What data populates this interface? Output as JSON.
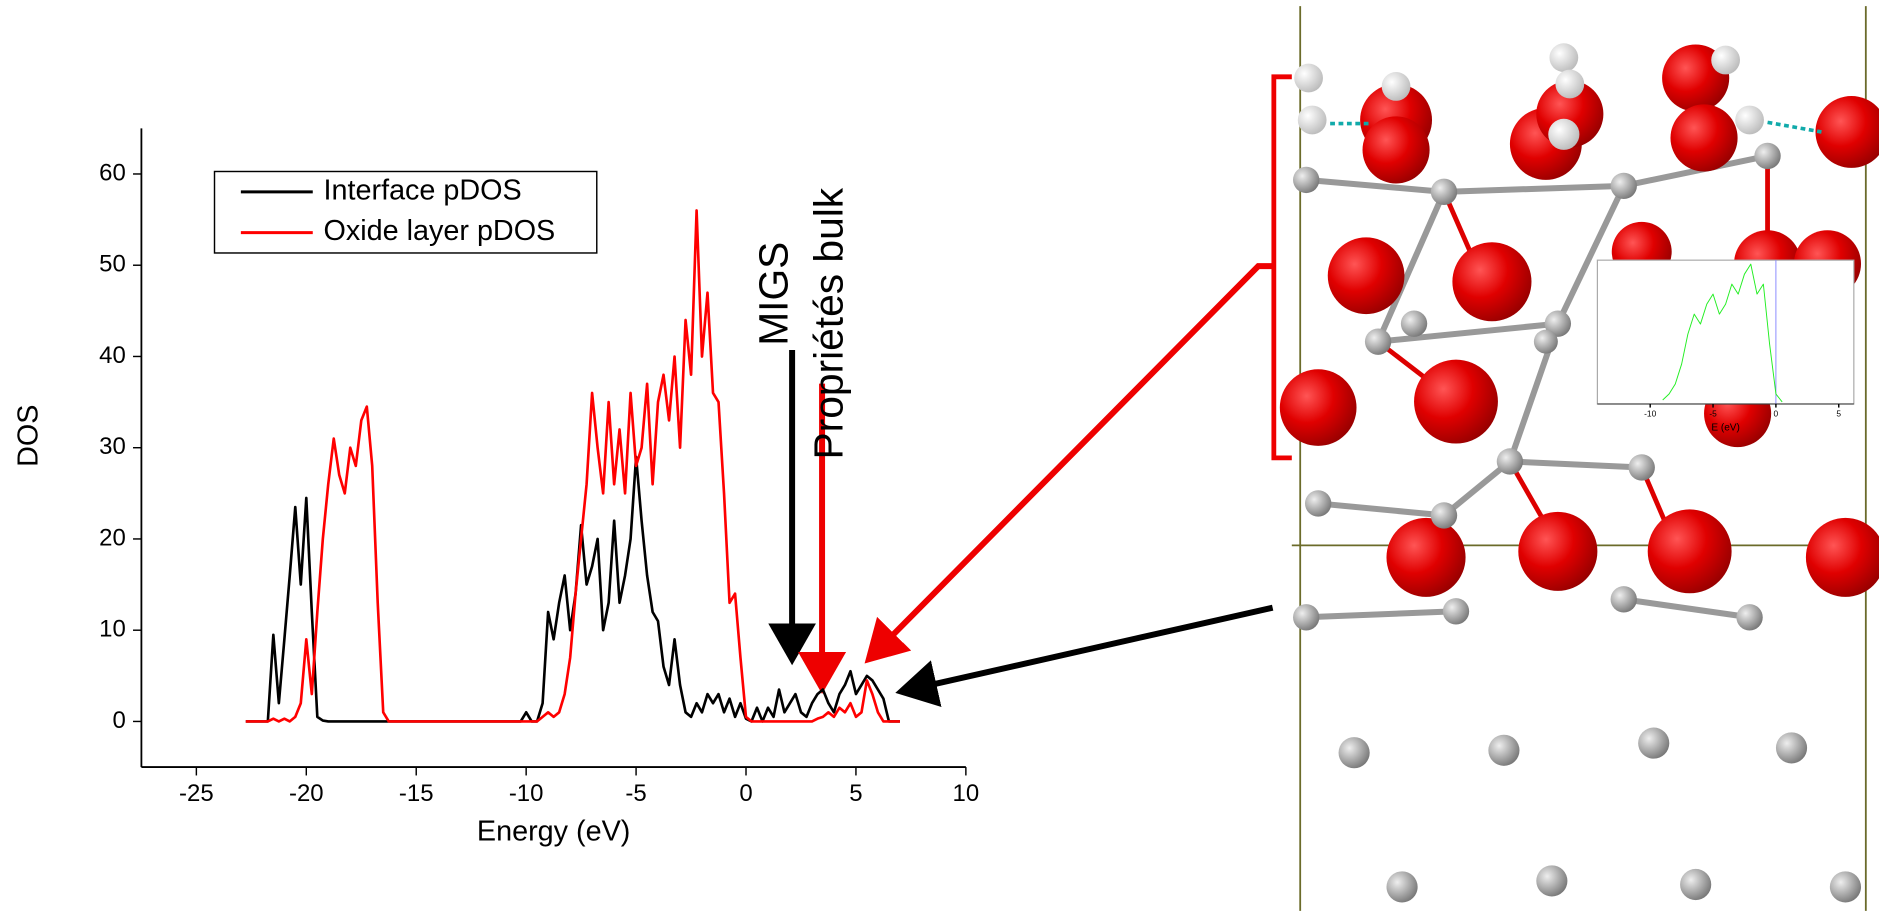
{
  "chart_data": [
    {
      "type": "line",
      "xlabel": "Energy (eV)",
      "ylabel": "DOS",
      "xlim": [
        -27.5,
        10
      ],
      "ylim": [
        -5,
        65
      ],
      "xticks": [
        -25,
        -20,
        -15,
        -10,
        -5,
        0,
        5,
        10
      ],
      "yticks": [
        0,
        10,
        20,
        30,
        40,
        50,
        60
      ],
      "legend": "upper left",
      "annotations": [
        "MIGS",
        "Propriétés bulk"
      ],
      "x": [
        -22.75,
        -21.75,
        -21.5,
        -21.25,
        -21,
        -20.75,
        -20.5,
        -20.25,
        -20,
        -19.75,
        -19.5,
        -19.25,
        -19,
        -18.75,
        -18.5,
        -18.25,
        -18,
        -17.75,
        -17.5,
        -17.25,
        -17,
        -16.75,
        -16.5,
        -16.25,
        -10.25,
        -10,
        -9.75,
        -9.5,
        -9.25,
        -9,
        -8.75,
        -8.5,
        -8.25,
        -8,
        -7.75,
        -7.5,
        -7.25,
        -7,
        -6.75,
        -6.5,
        -6.25,
        -6,
        -5.75,
        -5.5,
        -5.25,
        -5,
        -4.75,
        -4.5,
        -4.25,
        -4,
        -3.75,
        -3.5,
        -3.25,
        -3,
        -2.75,
        -2.5,
        -2.25,
        -2,
        -1.75,
        -1.5,
        -1.25,
        -1,
        -0.75,
        -0.5,
        -0.25,
        0,
        0.25,
        0.5,
        0.75,
        1,
        1.25,
        1.5,
        1.75,
        2,
        2.25,
        2.5,
        2.75,
        3,
        3.25,
        3.5,
        3.75,
        4,
        4.25,
        4.5,
        4.75,
        5,
        5.25,
        5.5,
        5.75,
        6,
        6.25,
        6.5,
        6.75,
        7
      ],
      "series": [
        {
          "name": "Interface pDOS",
          "color": "#000000",
          "values": [
            0,
            0,
            9.5,
            2,
            9,
            16,
            23.5,
            15,
            24.5,
            12,
            0.5,
            0.1,
            0,
            0,
            0,
            0,
            0,
            0,
            0,
            0,
            0,
            0,
            0,
            0,
            0,
            1,
            0,
            0,
            2,
            12,
            9,
            13,
            16,
            10,
            14,
            21.5,
            15,
            17,
            20,
            10,
            13,
            22,
            13,
            16,
            20,
            29,
            22,
            16,
            12,
            11,
            6,
            4,
            9,
            4,
            1,
            0.5,
            2,
            1,
            3,
            2,
            3,
            1,
            2.5,
            0.5,
            2,
            0.3,
            0,
            1.5,
            0,
            1.5,
            0.5,
            3.5,
            1,
            2,
            3,
            1,
            0.5,
            2,
            3,
            3.5,
            2,
            1,
            3,
            4,
            5.5,
            3,
            4,
            5,
            4.5,
            3.5,
            2.5,
            0,
            0,
            0
          ]
        },
        {
          "name": "Oxide layer pDOS",
          "color": "#ff0000",
          "values": [
            0,
            0,
            0.3,
            0,
            0.3,
            0,
            0.5,
            2,
            9,
            3,
            12,
            20,
            26,
            31,
            27,
            25,
            30,
            28,
            33,
            34.5,
            28,
            13,
            1,
            0,
            0,
            0,
            0,
            0,
            0.5,
            1,
            0.5,
            1,
            3,
            7,
            14,
            20,
            26,
            36,
            30,
            25,
            35,
            26,
            32,
            25,
            36,
            28,
            30,
            37,
            26,
            35,
            38,
            33,
            40,
            30,
            44,
            38,
            56,
            40,
            47,
            36,
            35,
            25,
            13,
            14,
            7,
            0.5,
            0,
            0,
            0,
            0,
            0,
            0,
            0,
            0,
            0,
            0,
            0,
            0,
            0.3,
            0.5,
            1,
            0.5,
            1.5,
            1,
            2,
            0.5,
            1,
            4.5,
            3,
            1,
            0,
            0,
            0,
            0
          ]
        }
      ]
    },
    {
      "type": "line",
      "xlabel": "E (eV)",
      "xlim": [
        -14.2,
        6.2
      ],
      "ylim": [
        0,
        72
      ],
      "xticks": [
        -10,
        -5,
        0,
        5
      ],
      "x": [
        -9,
        -8.5,
        -8,
        -7.5,
        -7,
        -6.5,
        -6,
        -5.5,
        -5,
        -4.5,
        -4,
        -3.5,
        -3,
        -2.5,
        -2,
        -1.5,
        -1,
        -0.5,
        0,
        0.5
      ],
      "series": [
        {
          "color": "#22ee22",
          "values": [
            2,
            5,
            10,
            20,
            35,
            45,
            40,
            50,
            55,
            45,
            50,
            60,
            55,
            65,
            70,
            55,
            60,
            30,
            5,
            1
          ]
        }
      ]
    }
  ]
}
